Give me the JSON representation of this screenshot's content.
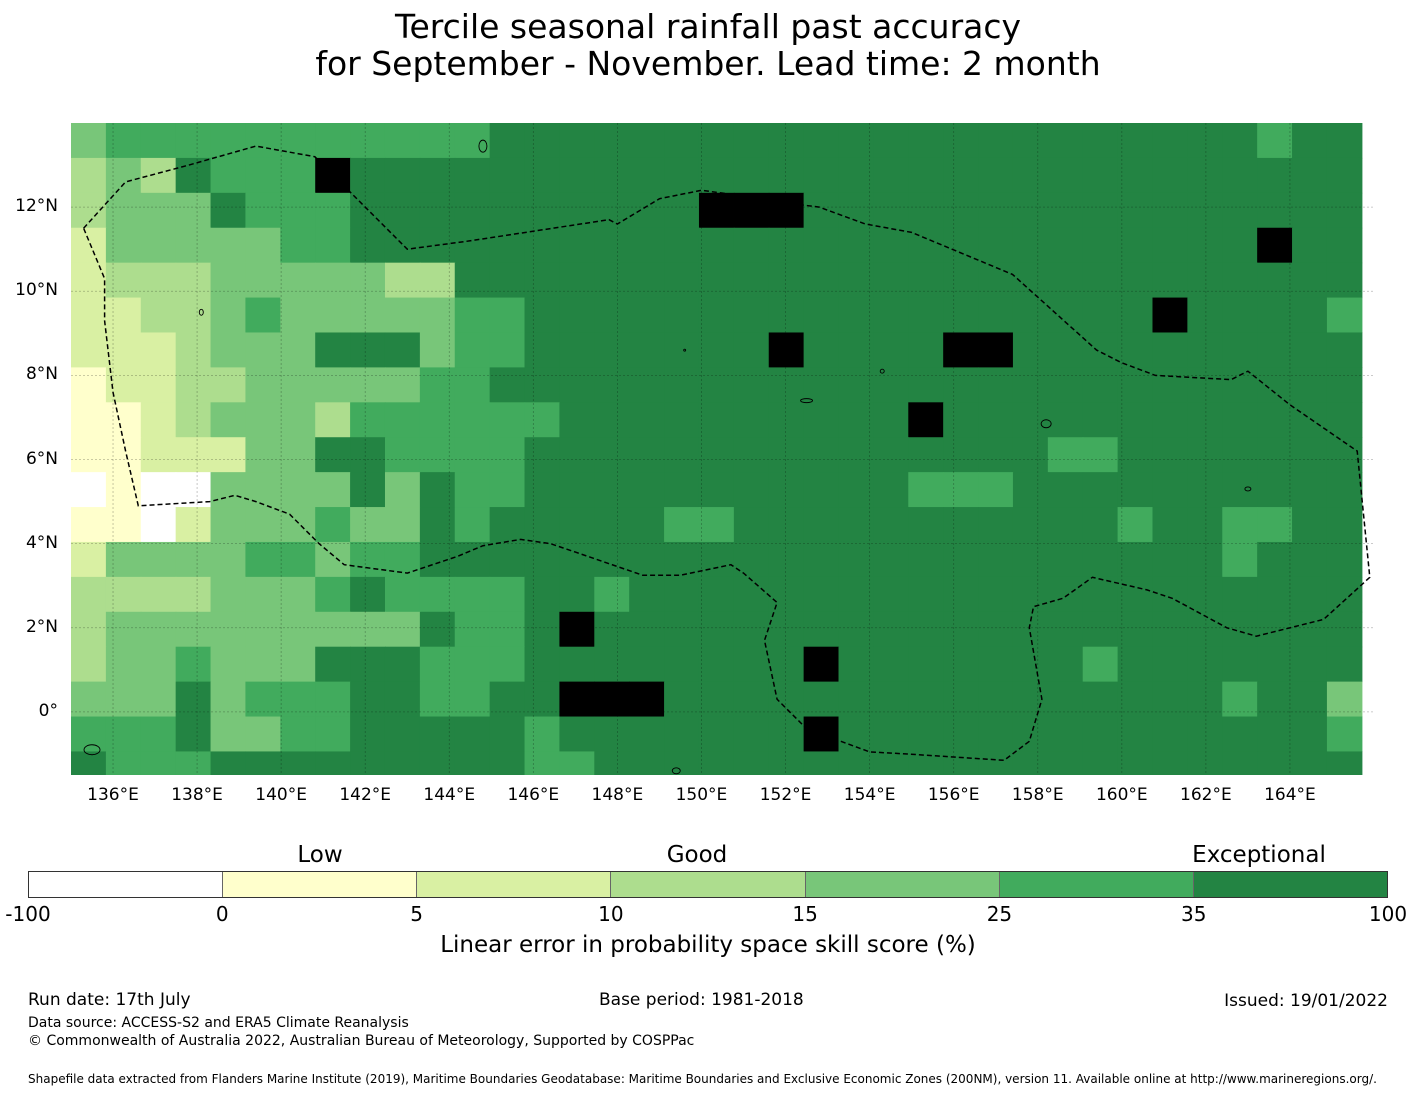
{
  "title": {
    "line1": "Tercile seasonal rainfall past accuracy",
    "line2": "for September - November. Lead time: 2 month"
  },
  "map": {
    "lat_labels": [
      "12°N",
      "10°N",
      "8°N",
      "6°N",
      "4°N",
      "2°N",
      "0°"
    ],
    "lon_labels": [
      "136°E",
      "138°E",
      "140°E",
      "142°E",
      "144°E",
      "146°E",
      "148°E",
      "150°E",
      "152°E",
      "154°E",
      "156°E",
      "158°E",
      "160°E",
      "162°E",
      "164°E"
    ],
    "lon_range": [
      135,
      166
    ],
    "lat_range": [
      -1.5,
      14.0
    ],
    "grid": true,
    "boundary_line": "dashed",
    "cell_size_deg": 0.83,
    "grid_class_rows": [
      "4555555555556666666666666666666666566",
      "3436555766666666666666666666666666666",
      "3444655566666666667776666666666666666",
      "2444445566666666666666666666666666766",
      "2333444443366666666666666666666666666",
      "2233454444455666666666666666666766665",
      "2223444666455666666676666776666666666",
      "1223344444556666666666666666666666666",
      "1123444355555566666666667666666666666",
      "1122244665555666666666666666556666666",
      "0100444464655666666666665556666666666",
      "1102444544656666655666666666665665566",
      "2444455455666666666666666666666665666",
      "3333444565555665666666666666666666666",
      "3444444444655676666666666666666666666",
      "3445444666555666666667666666656666666",
      "4446455566556677766666666666666665664",
      "5556445566666566666667666666666666665",
      "6555666666666556666666666666666666666",
      "6666666666766666666666666666666666666",
      "7666766666666667766666666666666666666",
      "7777766666666666666666666666666666667",
      "7776667777666666666676666666666666677",
      "7777666666666666666667677677777777777",
      "7776666666666666666666666667777777777",
      "7677676666666666666666777777777777777",
      "7677766666666666666666677777777777777",
      "7777766665666666666666677777777777777"
    ]
  },
  "colorbar": {
    "categories": [
      {
        "label": "Low"
      },
      {
        "label": "Good"
      },
      {
        "label": "Exceptional"
      }
    ],
    "ticks": [
      "-100",
      "0",
      "5",
      "10",
      "15",
      "25",
      "35",
      "100"
    ],
    "colors": [
      "#ffffff",
      "#ffffcc",
      "#d9f0a3",
      "#addd8e",
      "#78c679",
      "#41ab5d",
      "#238443"
    ],
    "label": "Linear error in probability space skill score (%)"
  },
  "footer": {
    "run_date": "Run date: 17th July",
    "base_period": "Base period: 1981-2018",
    "issued": "Issued: 19/01/2022",
    "data_source": "Data source: ACCESS-S2 and ERA5 Climate Reanalysis",
    "copyright": "© Commonwealth of Australia 2022, Australian Bureau of Meteorology, Supported by COSPPac",
    "shapefile_note": "Shapefile data extracted from Flanders Marine Institute (2019), Maritime Boundaries Geodatabase: Maritime Boundaries and Exclusive Economic Zones (200NM), version 11. Available online at http://www.marineregions.org/."
  }
}
